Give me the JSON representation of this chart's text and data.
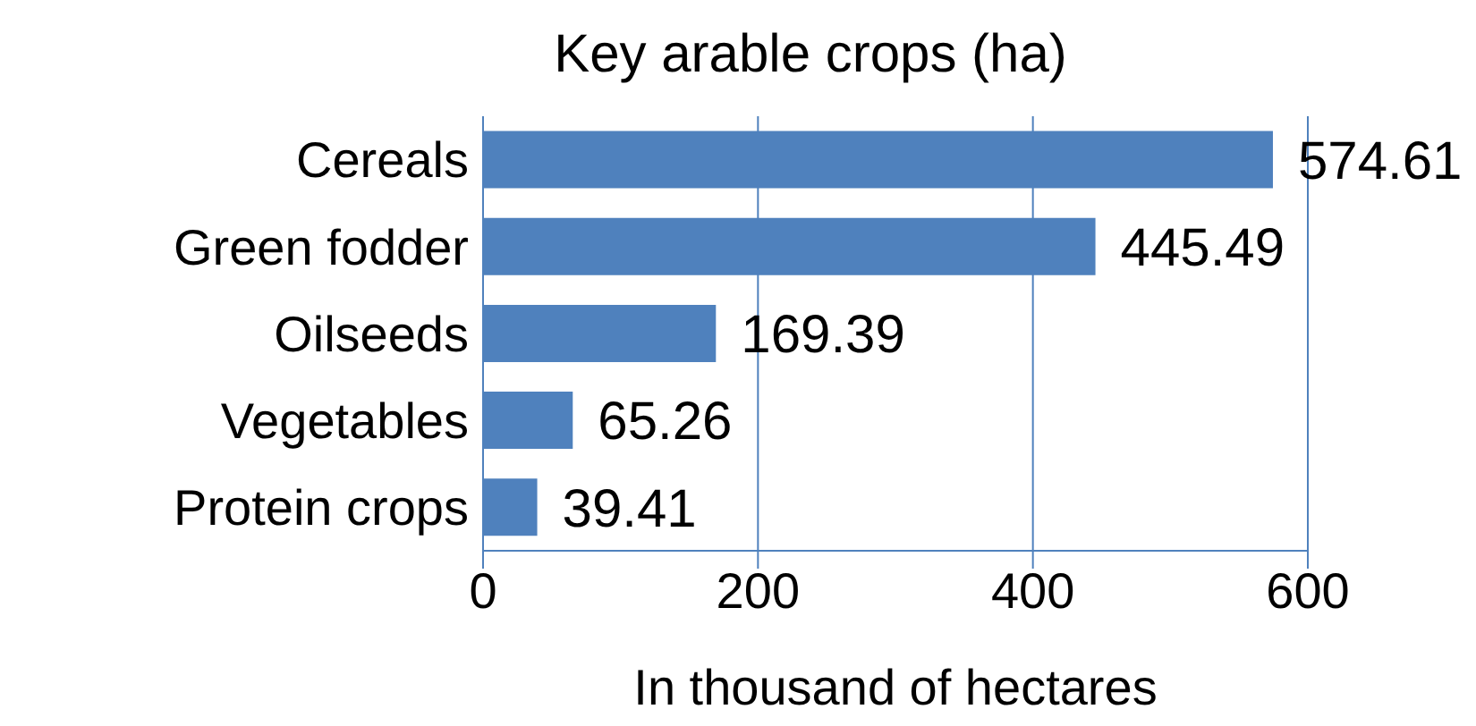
{
  "chart_data": {
    "type": "bar",
    "orientation": "horizontal",
    "title": "Key arable crops (ha)",
    "xlabel": "In thousand of hectares",
    "categories": [
      "Cereals",
      "Green fodder",
      "Oilseeds",
      "Vegetables",
      "Protein crops"
    ],
    "values": [
      574.61,
      445.49,
      169.39,
      65.26,
      39.41
    ],
    "color": "#4f81bd",
    "xlim": [
      0,
      600
    ],
    "xticks": [
      0,
      200,
      400,
      600
    ],
    "grid": "x",
    "data_labels": true
  }
}
